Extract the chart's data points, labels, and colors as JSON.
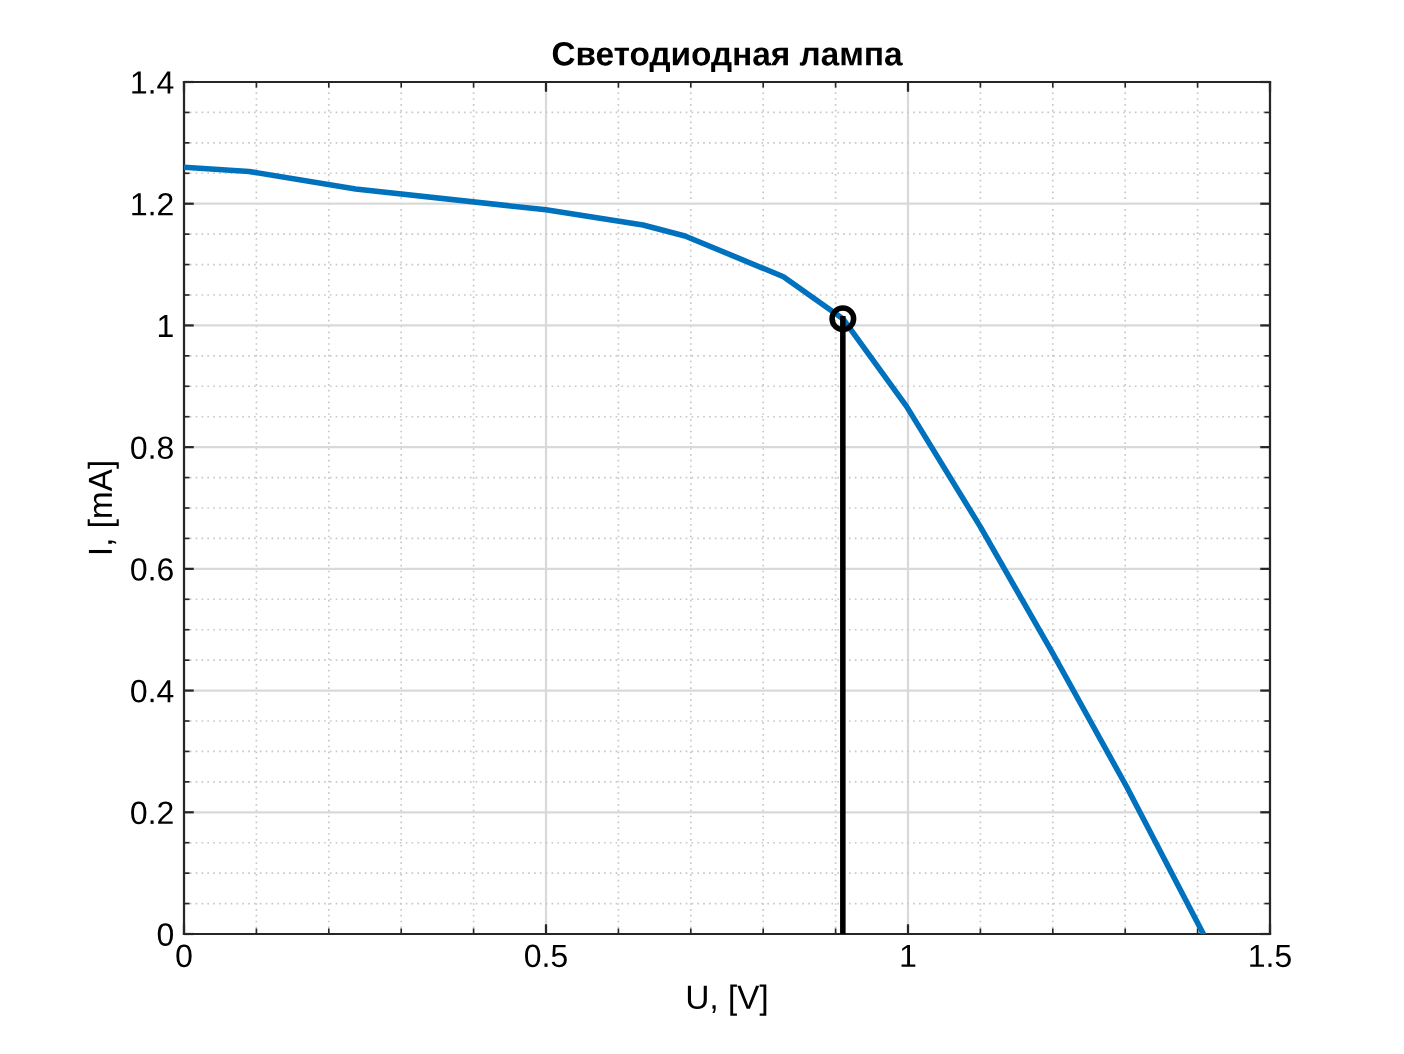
{
  "chart_data": {
    "type": "line",
    "title": "Светодиодная лампа",
    "xlabel": "U, [V]",
    "ylabel": "I, [mA]",
    "series": [
      {
        "color": "#0072bd",
        "x": [
          0,
          0.09,
          0.237,
          0.5,
          0.634,
          0.692,
          0.828,
          0.91,
          0.998,
          1.1,
          1.2,
          1.302,
          1.408
        ],
        "values": [
          1.26,
          1.253,
          1.224,
          1.19,
          1.165,
          1.147,
          1.08,
          1.011,
          0.867,
          0.669,
          0.461,
          0.242,
          0
        ]
      },
      {
        "type": "line",
        "color": "#000000",
        "x": [
          0.91,
          0.91
        ],
        "values": [
          0,
          1.011
        ]
      },
      {
        "type": "scatter",
        "color": "#000000",
        "marker": "circle",
        "x": [
          0.91
        ],
        "values": [
          1.011
        ]
      }
    ],
    "xlim": [
      0,
      1.5
    ],
    "ylim": [
      0,
      1.4
    ],
    "xticks": [
      0,
      0.5,
      1,
      1.5
    ],
    "yticks": [
      0,
      0.2,
      0.4,
      0.6,
      0.8,
      1,
      1.2,
      1.4
    ],
    "grid": true
  }
}
